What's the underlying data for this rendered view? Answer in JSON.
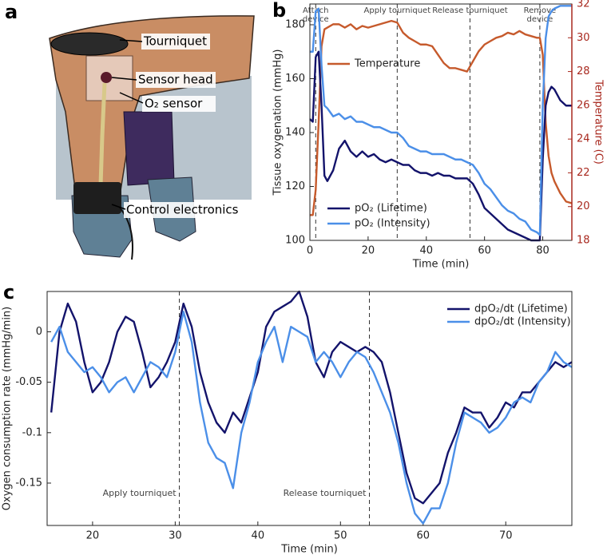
{
  "panel_letters": [
    "a",
    "b",
    "c"
  ],
  "illustration": {
    "labels": [
      "Tourniquet",
      "Sensor head",
      "O₂ sensor",
      "Control electronics"
    ]
  },
  "chart_data": [
    {
      "type": "line",
      "xlabel": "Time (min)",
      "ylabel": "Tissue oxygenation (mmHg)",
      "y2label": "Temperature (C)",
      "x": [
        0,
        1,
        2,
        3,
        4,
        5,
        6,
        8,
        10,
        12,
        14,
        16,
        18,
        20,
        22,
        24,
        26,
        28,
        30,
        32,
        34,
        36,
        38,
        40,
        42,
        44,
        46,
        48,
        50,
        52,
        54,
        56,
        58,
        60,
        62,
        64,
        66,
        68,
        70,
        72,
        74,
        76,
        78,
        79,
        80,
        81,
        82,
        83,
        84,
        86,
        88,
        90
      ],
      "xlim": [
        0,
        90
      ],
      "xticks": [
        0,
        20,
        40,
        60,
        80
      ],
      "ylim": [
        100,
        187.7
      ],
      "yticks": [
        100,
        120,
        140,
        160,
        180
      ],
      "y2lim": [
        18,
        32
      ],
      "y2ticks": [
        18,
        20,
        22,
        24,
        26,
        28,
        30,
        32
      ],
      "y2color": "#a8281e",
      "series": [
        {
          "name": "Temperature",
          "color": "#c65a2c",
          "axis": "y2",
          "values": [
            19.5,
            19.5,
            21,
            25,
            29.5,
            30.5,
            30.6,
            30.8,
            30.8,
            30.6,
            30.8,
            30.5,
            30.7,
            30.6,
            30.7,
            30.8,
            30.9,
            31.0,
            30.9,
            30.3,
            30.0,
            29.8,
            29.6,
            29.6,
            29.5,
            29.0,
            28.5,
            28.2,
            28.2,
            28.1,
            28.0,
            28.6,
            29.2,
            29.6,
            29.8,
            30.0,
            30.1,
            30.3,
            30.2,
            30.4,
            30.2,
            30.1,
            30.0,
            30.0,
            29.0,
            25,
            23,
            22,
            21.5,
            20.8,
            20.3,
            20.2
          ]
        },
        {
          "name": "pO₂  (Lifetime)",
          "color": "#13136b",
          "values": [
            145,
            144,
            168,
            170,
            150,
            124,
            122,
            126,
            134,
            137,
            133,
            131,
            133,
            131,
            132,
            130,
            129,
            130,
            129,
            128,
            128,
            126,
            125,
            125,
            124,
            125,
            124,
            124,
            123,
            123,
            123,
            121,
            117,
            112,
            110,
            108,
            106,
            104,
            103,
            102,
            101,
            100,
            100,
            100,
            130,
            150,
            155,
            157,
            156,
            152,
            150,
            150
          ]
        },
        {
          "name": "pO₂  (Intensity)",
          "color": "#4b8fe8",
          "values": [
            170,
            170,
            185,
            186,
            165,
            150,
            149,
            146,
            147,
            145,
            146,
            144,
            144,
            143,
            142,
            142,
            141,
            140,
            140,
            138,
            135,
            134,
            133,
            133,
            132,
            132,
            132,
            131,
            130,
            130,
            129,
            128,
            125,
            121,
            119,
            116,
            113,
            111,
            110,
            108,
            107,
            104,
            103,
            102,
            150,
            175,
            183,
            185,
            186,
            187,
            187,
            187
          ]
        }
      ],
      "annotations": [
        {
          "x": 2,
          "label_lines": [
            "Attach",
            "device"
          ]
        },
        {
          "x": 30,
          "label_lines": [
            "Apply tourniquet"
          ]
        },
        {
          "x": 55,
          "label_lines": [
            "Release tourniquet"
          ]
        },
        {
          "x": 79,
          "label_lines": [
            "Remove",
            "device"
          ]
        }
      ]
    },
    {
      "type": "line",
      "xlabel": "Time (min)",
      "ylabel": "Oxygen consumption rate (mmHg/min)",
      "x": [
        15,
        16,
        17,
        18,
        19,
        20,
        21,
        22,
        23,
        24,
        25,
        26,
        27,
        28,
        29,
        30,
        31,
        32,
        33,
        34,
        35,
        36,
        37,
        38,
        39,
        40,
        41,
        42,
        43,
        44,
        45,
        46,
        47,
        48,
        49,
        50,
        51,
        52,
        53,
        54,
        55,
        56,
        57,
        58,
        59,
        60,
        61,
        62,
        63,
        64,
        65,
        66,
        67,
        68,
        69,
        70,
        71,
        72,
        73,
        74,
        75,
        76,
        77,
        78
      ],
      "xlim": [
        14.5,
        78
      ],
      "xticks": [
        20,
        30,
        40,
        50,
        60,
        70
      ],
      "ylim": [
        -0.192,
        0.04
      ],
      "yticks": [
        -0.15,
        -0.1,
        -0.05,
        0
      ],
      "legend": "upper right",
      "series": [
        {
          "name": "dpO₂/dt (Lifetime)",
          "color": "#13136b",
          "values": [
            -0.08,
            0.0,
            0.028,
            0.01,
            -0.03,
            -0.06,
            -0.05,
            -0.03,
            0.0,
            0.015,
            0.01,
            -0.02,
            -0.055,
            -0.045,
            -0.03,
            -0.01,
            0.028,
            0.005,
            -0.04,
            -0.07,
            -0.09,
            -0.1,
            -0.08,
            -0.09,
            -0.065,
            -0.04,
            0.005,
            0.02,
            0.025,
            0.03,
            0.04,
            0.015,
            -0.03,
            -0.045,
            -0.02,
            -0.01,
            -0.015,
            -0.02,
            -0.015,
            -0.02,
            -0.03,
            -0.06,
            -0.1,
            -0.14,
            -0.165,
            -0.17,
            -0.16,
            -0.15,
            -0.12,
            -0.1,
            -0.075,
            -0.08,
            -0.08,
            -0.095,
            -0.085,
            -0.07,
            -0.075,
            -0.06,
            -0.06,
            -0.05,
            -0.04,
            -0.03,
            -0.035,
            -0.03
          ]
        },
        {
          "name": "dpO₂/dt (Intensity)",
          "color": "#4b8fe8",
          "values": [
            -0.01,
            0.005,
            -0.02,
            -0.03,
            -0.04,
            -0.035,
            -0.045,
            -0.06,
            -0.05,
            -0.045,
            -0.06,
            -0.045,
            -0.03,
            -0.035,
            -0.045,
            -0.02,
            0.02,
            -0.01,
            -0.07,
            -0.11,
            -0.125,
            -0.13,
            -0.155,
            -0.1,
            -0.07,
            -0.03,
            -0.01,
            0.005,
            -0.03,
            0.005,
            0.0,
            -0.005,
            -0.03,
            -0.02,
            -0.03,
            -0.045,
            -0.03,
            -0.02,
            -0.025,
            -0.04,
            -0.06,
            -0.08,
            -0.11,
            -0.15,
            -0.18,
            -0.19,
            -0.175,
            -0.175,
            -0.15,
            -0.11,
            -0.08,
            -0.085,
            -0.09,
            -0.1,
            -0.095,
            -0.085,
            -0.07,
            -0.065,
            -0.07,
            -0.05,
            -0.04,
            -0.02,
            -0.03,
            -0.035
          ]
        }
      ],
      "annotations": [
        {
          "x": 30.5,
          "label_lines": [
            "Apply tourniquet"
          ]
        },
        {
          "x": 53.5,
          "label_lines": [
            "Release tourniquet"
          ]
        }
      ]
    }
  ]
}
